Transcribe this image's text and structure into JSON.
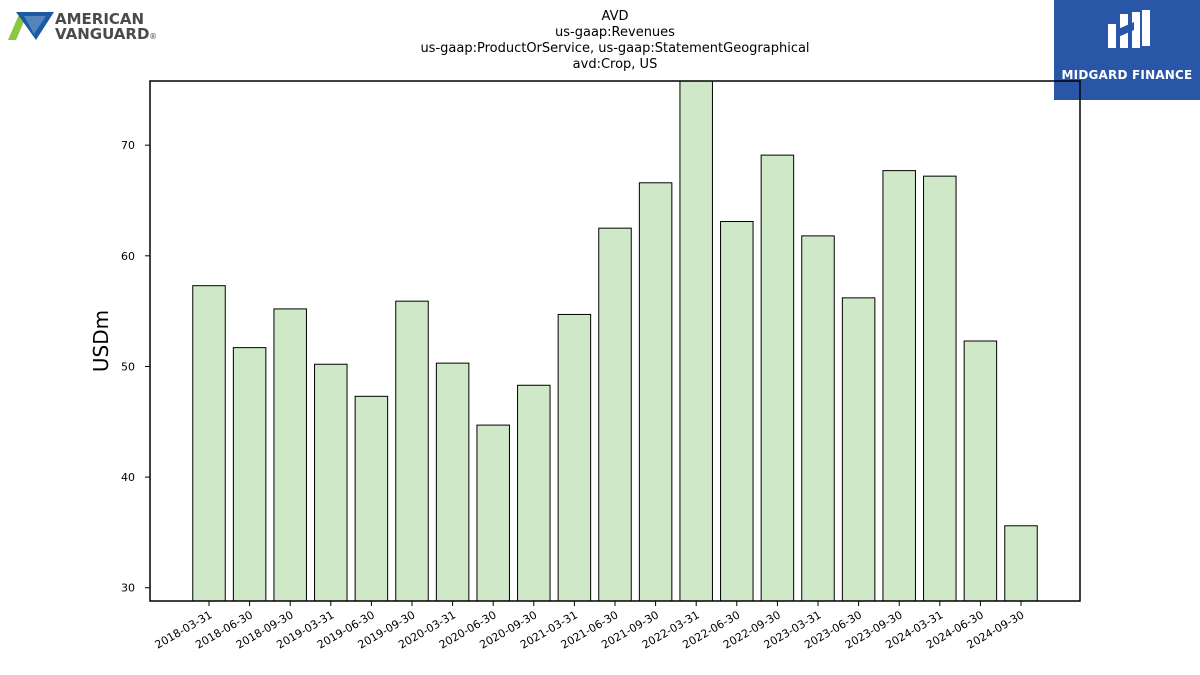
{
  "brand": {
    "left_logo_line1": "AMERICAN",
    "left_logo_line2": "VANGUARD",
    "left_logo_mark": "®",
    "right_logo_text": "MIDGARD FINANCE",
    "right_logo_bg": "#2a56a8"
  },
  "chart_data": {
    "type": "bar",
    "title_lines": [
      "AVD",
      "us-gaap:Revenues",
      "us-gaap:ProductOrService, us-gaap:StatementGeographical",
      "avd:Crop, US"
    ],
    "xlabel": "",
    "ylabel": "USDm",
    "ylim": [
      28.8,
      75.8
    ],
    "yticks": [
      30,
      40,
      50,
      60,
      70
    ],
    "grid": false,
    "legend": "none",
    "bar_color": "#cfe9c8",
    "bar_edge_color": "#000000",
    "categories": [
      "2018-03-31",
      "2018-06-30",
      "2018-09-30",
      "2019-03-31",
      "2019-06-30",
      "2019-09-30",
      "2020-03-31",
      "2020-06-30",
      "2020-09-30",
      "2021-03-31",
      "2021-06-30",
      "2021-09-30",
      "2022-03-31",
      "2022-06-30",
      "2022-09-30",
      "2023-03-31",
      "2023-06-30",
      "2023-09-30",
      "2024-03-31",
      "2024-06-30",
      "2024-09-30"
    ],
    "values": [
      57.3,
      51.7,
      55.2,
      50.2,
      47.3,
      55.9,
      50.3,
      44.7,
      48.3,
      54.7,
      62.5,
      66.6,
      75.8,
      63.1,
      69.1,
      61.8,
      56.2,
      67.7,
      67.2,
      52.3,
      35.6
    ]
  }
}
